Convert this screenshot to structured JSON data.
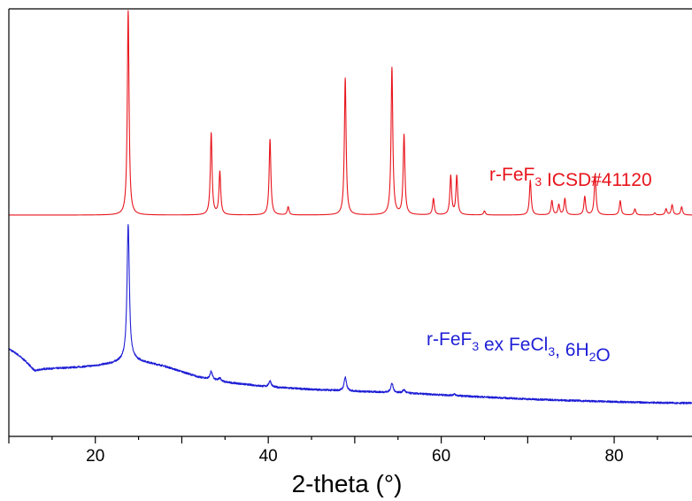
{
  "chart_data": {
    "type": "line",
    "xlabel": "2-theta (°)",
    "ylabel": "",
    "title": "",
    "xlim": [
      10,
      89
    ],
    "x_ticks": [
      20,
      40,
      60,
      80
    ],
    "y_ticks_labeled": false,
    "grid": false,
    "legend": "inline labels",
    "series": [
      {
        "name_parts": [
          {
            "t": "r-FeF",
            "sub": false
          },
          {
            "t": "3",
            "sub": true
          },
          {
            "t": " ICSD#41120",
            "sub": false
          }
        ],
        "color": "#e8141c",
        "baseline": 0.0,
        "peaks": [
          {
            "x": 23.8,
            "h": 1.0
          },
          {
            "x": 33.4,
            "h": 0.4
          },
          {
            "x": 34.4,
            "h": 0.21
          },
          {
            "x": 40.2,
            "h": 0.37
          },
          {
            "x": 42.3,
            "h": 0.04
          },
          {
            "x": 48.9,
            "h": 0.67
          },
          {
            "x": 54.3,
            "h": 0.72
          },
          {
            "x": 55.7,
            "h": 0.39
          },
          {
            "x": 59.1,
            "h": 0.08
          },
          {
            "x": 61.1,
            "h": 0.19
          },
          {
            "x": 61.8,
            "h": 0.19
          },
          {
            "x": 65.0,
            "h": 0.02
          },
          {
            "x": 70.3,
            "h": 0.17
          },
          {
            "x": 72.8,
            "h": 0.07
          },
          {
            "x": 73.6,
            "h": 0.05
          },
          {
            "x": 74.3,
            "h": 0.08
          },
          {
            "x": 76.6,
            "h": 0.09
          },
          {
            "x": 77.8,
            "h": 0.2
          },
          {
            "x": 80.7,
            "h": 0.07
          },
          {
            "x": 82.4,
            "h": 0.03
          },
          {
            "x": 84.7,
            "h": 0.01
          },
          {
            "x": 86.0,
            "h": 0.03
          },
          {
            "x": 86.7,
            "h": 0.05
          },
          {
            "x": 87.8,
            "h": 0.04
          }
        ]
      },
      {
        "name_parts": [
          {
            "t": "r-FeF",
            "sub": false
          },
          {
            "t": "3",
            "sub": true
          },
          {
            "t": " ex FeCl",
            "sub": false
          },
          {
            "t": "3",
            "sub": true
          },
          {
            "t": ", 6H",
            "sub": false
          },
          {
            "t": "2",
            "sub": true
          },
          {
            "t": "O",
            "sub": false
          }
        ],
        "color": "#1f1fd6",
        "background": [
          {
            "x": 10,
            "y": 0.3
          },
          {
            "x": 11,
            "y": 0.27
          },
          {
            "x": 12,
            "y": 0.23
          },
          {
            "x": 13,
            "y": 0.18
          },
          {
            "x": 14,
            "y": 0.19
          },
          {
            "x": 16,
            "y": 0.195
          },
          {
            "x": 18,
            "y": 0.2
          },
          {
            "x": 20,
            "y": 0.208
          },
          {
            "x": 22,
            "y": 0.222
          },
          {
            "x": 23,
            "y": 0.235
          },
          {
            "x": 24,
            "y": 0.245
          },
          {
            "x": 26,
            "y": 0.225
          },
          {
            "x": 28,
            "y": 0.205
          },
          {
            "x": 30,
            "y": 0.175
          },
          {
            "x": 32,
            "y": 0.145
          },
          {
            "x": 35,
            "y": 0.118
          },
          {
            "x": 40,
            "y": 0.092
          },
          {
            "x": 45,
            "y": 0.078
          },
          {
            "x": 50,
            "y": 0.068
          },
          {
            "x": 55,
            "y": 0.06
          },
          {
            "x": 60,
            "y": 0.048
          },
          {
            "x": 65,
            "y": 0.036
          },
          {
            "x": 70,
            "y": 0.025
          },
          {
            "x": 75,
            "y": 0.017
          },
          {
            "x": 80,
            "y": 0.01
          },
          {
            "x": 85,
            "y": 0.005
          },
          {
            "x": 89,
            "y": 0.003
          }
        ],
        "peaks": [
          {
            "x": 23.8,
            "h": 0.74
          },
          {
            "x": 33.4,
            "h": 0.045
          },
          {
            "x": 34.4,
            "h": 0.018
          },
          {
            "x": 40.2,
            "h": 0.035
          },
          {
            "x": 48.9,
            "h": 0.075
          },
          {
            "x": 54.3,
            "h": 0.05
          },
          {
            "x": 55.7,
            "h": 0.018
          },
          {
            "x": 61.5,
            "h": 0.008
          }
        ]
      }
    ]
  }
}
